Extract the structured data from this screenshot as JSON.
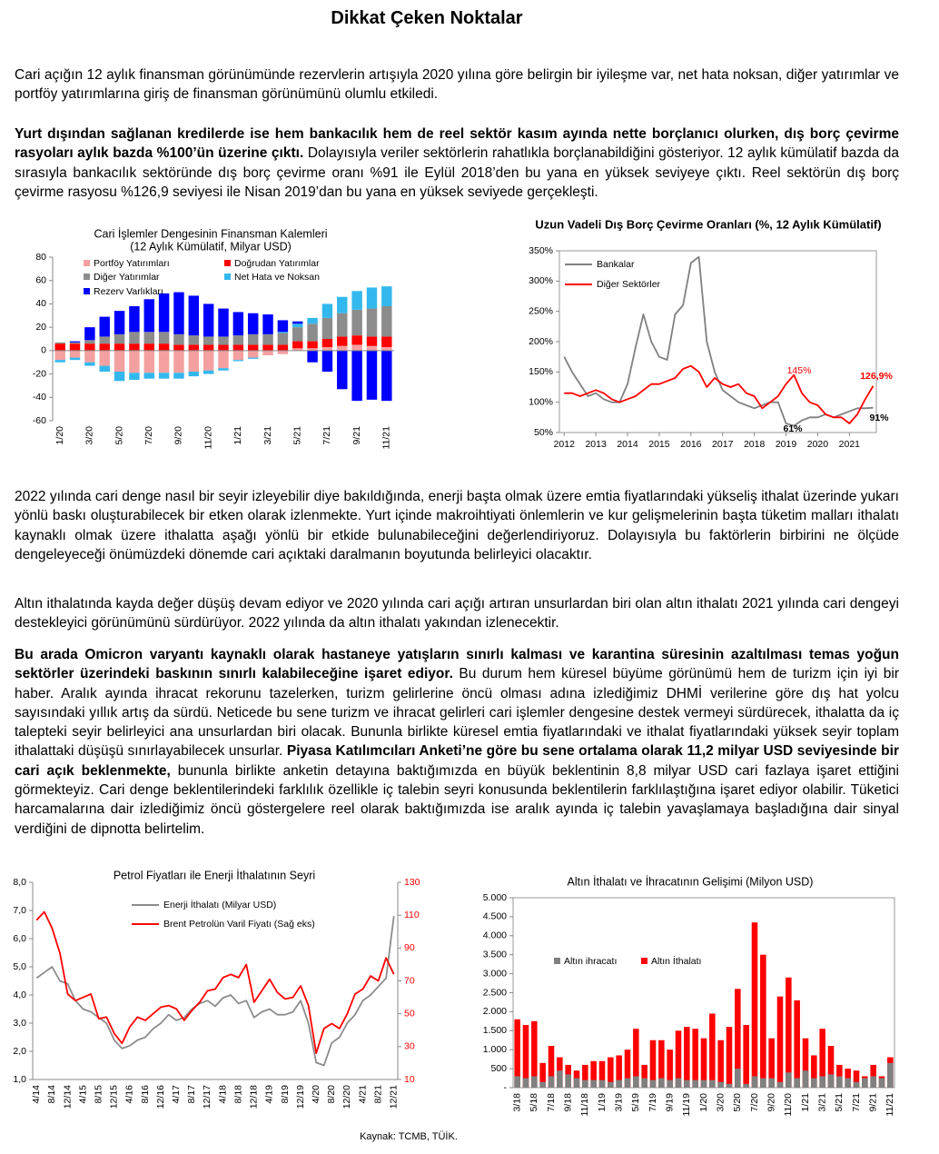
{
  "title": "Dikkat Çeken Noktalar",
  "paragraphs": [
    {
      "runs": [
        {
          "text": "Cari açığın 12 aylık finansman görünümünde rezervlerin artışıyla 2020 yılına göre belirgin bir iyileşme var, net hata noksan, diğer yatırımlar ve portföy yatırımlarına giriş de finansman görünümünü olumlu etkiledi.",
          "bold": false
        }
      ]
    },
    {
      "runs": [
        {
          "text": "Yurt dışından sağlanan kredilerde ise hem bankacılık hem de reel sektör kasım ayında nette borçlanıcı olurken, dış borç çevirme rasyoları aylık bazda %100’ün üzerine çıktı.",
          "bold": true
        },
        {
          "text": " Dolayısıyla veriler sektörlerin rahatlıkla borçlanabildiğini gösteriyor. 12 aylık kümülatif bazda da sırasıyla bankacılık sektöründe dış borç çevirme oranı %91 ile Eylül 2018’den bu yana en yüksek seviyeye çıktı. Reel sektörün dış borç çevirme rasyosu %126,9 seviyesi ile Nisan 2019’dan bu yana en yüksek seviyede gerçekleşti.",
          "bold": false
        }
      ]
    },
    {
      "runs": [
        {
          "text": "2022 yılında cari denge nasıl bir seyir izleyebilir diye bakıldığında, enerji başta olmak üzere emtia fiyatlarındaki yükseliş ithalat üzerinde yukarı yönlü baskı oluşturabilecek bir etken olarak izlenmekte. Yurt içinde makroihtiyati önlemlerin ve kur gelişmelerinin başta tüketim malları ithalatı kaynaklı olmak üzere ithalatta aşağı yönlü bir etkide bulunabileceğini değerlendiriyoruz. Dolayısıyla bu faktörlerin birbirini ne ölçüde dengeleyeceği önümüzdeki dönemde cari açıktaki daralmanın boyutunda belirleyici olacaktır.",
          "bold": false
        }
      ]
    },
    {
      "runs": [
        {
          "text": "Altın ithalatında kayda değer düşüş devam ediyor ve 2020 yılında cari açığı artıran unsurlardan biri olan altın ithalatı 2021 yılında cari dengeyi destekleyici görünümünü sürdürüyor. 2022 yılında da altın ithalatı yakından izlenecektir.",
          "bold": false
        }
      ]
    },
    {
      "runs": [
        {
          "text": "Bu arada Omicron varyantı kaynaklı olarak hastaneye yatışların sınırlı kalması ve karantina süresinin azaltılması temas yoğun sektörler üzerindeki baskının sınırlı kalabileceğine işaret ediyor.",
          "bold": true
        },
        {
          "text": " Bu durum hem küresel büyüme görünümü hem de turizm için iyi bir haber. Aralık ayında ihracat rekorunu tazelerken, turizm gelirlerine öncü olması adına izlediğimiz DHMİ verilerine göre dış hat yolcu sayısındaki yıllık artış da sürdü. Neticede bu sene turizm ve ihracat gelirleri cari işlemler dengesine destek vermeyi sürdürecek, ithalatta da iç talepteki seyir belirleyici ana unsurlardan biri olacak. Bununla birlikte küresel emtia fiyatlarındaki ve ithalat fiyatlarındaki yüksek seyir toplam ithalattaki düşüşü sınırlayabilecek unsurlar. ",
          "bold": false
        },
        {
          "text": "Piyasa Katılımcıları Anketi’ne göre bu sene ortalama olarak 11,2 milyar USD seviyesinde bir cari açık beklenmekte,",
          "bold": true
        },
        {
          "text": " bununla birlikte anketin detayına baktığımızda en büyük beklentinin 8,8 milyar USD cari fazlaya işaret ettiğini görmekteyiz. Cari denge beklentilerindeki farklılık özellikle iç talebin seyri konusunda beklentilerin farklılaştığına işaret ediyor olabilir. Tüketici harcamalarına dair izlediğimiz öncü göstergelere reel olarak baktığımızda ise aralık ayında iç talebin yavaşlamaya başladığına dair sinyal verdiğini de dipnotta belirtelim.",
          "bold": false
        }
      ]
    }
  ],
  "chart_data": [
    {
      "type": "bar",
      "stacked": true,
      "title": "Cari İşlemler Dengesinin Finansman  Kalemleri",
      "subtitle": "(12 Aylık Kümülatif, Milyar USD)",
      "categories": [
        "1/20",
        null,
        "3/20",
        null,
        "5/20",
        null,
        "7/20",
        null,
        "9/20",
        null,
        "11/20",
        null,
        "1/21",
        null,
        "3/21",
        null,
        "5/21",
        null,
        "7/21",
        null,
        "9/21",
        null,
        "11/21"
      ],
      "series": [
        {
          "name": "Portföy Yatırımları",
          "color": "#f4a0a0",
          "values": [
            -8,
            -6,
            -10,
            -13,
            -18,
            -19,
            -19,
            -19,
            -19,
            -18,
            -17,
            -15,
            -8,
            -6,
            -4,
            -3,
            2,
            2,
            3,
            4,
            5,
            4,
            3
          ]
        },
        {
          "name": "Doğrudan Yatırımlar",
          "color": "#ff0000",
          "values": [
            6,
            6,
            6,
            6,
            6,
            6,
            6,
            6,
            5,
            5,
            5,
            5,
            5,
            5,
            5,
            5,
            6,
            6,
            7,
            8,
            8,
            8,
            9
          ]
        },
        {
          "name": "Diğer Yatırımlar",
          "color": "#8c8c8c",
          "values": [
            1,
            1,
            3,
            6,
            8,
            10,
            10,
            10,
            9,
            8,
            7,
            7,
            8,
            9,
            9,
            10,
            12,
            15,
            18,
            20,
            22,
            24,
            26
          ]
        },
        {
          "name": "Net Hata ve Noksan",
          "color": "#33b8ee",
          "values": [
            -2,
            -2,
            -3,
            -5,
            -8,
            -6,
            -5,
            -5,
            -5,
            -4,
            -3,
            -2,
            -1,
            -1,
            0,
            1,
            3,
            5,
            12,
            14,
            16,
            18,
            17
          ]
        },
        {
          "name": "Rezerv Varlıkları",
          "color": "#0000ff",
          "values": [
            0,
            1,
            11,
            17,
            20,
            22,
            28,
            33,
            36,
            34,
            28,
            24,
            20,
            18,
            17,
            10,
            2,
            -10,
            -18,
            -33,
            -43,
            -42,
            -43
          ]
        }
      ],
      "ylim": [
        -60,
        80
      ],
      "yticks": [
        -60,
        -40,
        -20,
        0,
        20,
        40,
        60,
        80
      ],
      "grid": false
    },
    {
      "type": "line",
      "title": "Uzun Vadeli Dış Borç Çevirme Oranları (%, 12 Aylık Kümülatif)",
      "x": [
        2012,
        2012.25,
        2012.5,
        2012.75,
        2013,
        2013.25,
        2013.5,
        2013.75,
        2014,
        2014.25,
        2014.5,
        2014.75,
        2015,
        2015.25,
        2015.5,
        2015.75,
        2016,
        2016.25,
        2016.5,
        2016.75,
        2017,
        2017.25,
        2017.5,
        2017.75,
        2018,
        2018.25,
        2018.5,
        2018.75,
        2019,
        2019.25,
        2019.5,
        2019.75,
        2020,
        2020.25,
        2020.5,
        2020.75,
        2021,
        2021.25,
        2021.5,
        2021.75
      ],
      "series": [
        {
          "name": "Bankalar",
          "color": "#808080",
          "values": [
            175,
            150,
            130,
            110,
            115,
            105,
            100,
            100,
            130,
            190,
            245,
            200,
            175,
            170,
            245,
            260,
            330,
            340,
            200,
            150,
            120,
            110,
            100,
            95,
            90,
            95,
            100,
            100,
            65,
            61,
            70,
            75,
            75,
            80,
            75,
            80,
            85,
            90,
            90,
            91
          ]
        },
        {
          "name": "Diğer Sektörler",
          "color": "#ff0000",
          "values": [
            115,
            115,
            110,
            115,
            120,
            115,
            105,
            100,
            105,
            110,
            120,
            130,
            130,
            135,
            140,
            155,
            160,
            150,
            125,
            140,
            130,
            125,
            130,
            115,
            110,
            90,
            100,
            110,
            130,
            145,
            115,
            100,
            95,
            80,
            75,
            75,
            65,
            80,
            105,
            126.9
          ]
        }
      ],
      "xlim": [
        2011.85,
        2021.85
      ],
      "xticks": [
        2012,
        2013,
        2014,
        2015,
        2016,
        2017,
        2018,
        2019,
        2020,
        2021
      ],
      "ylim": [
        50,
        350
      ],
      "yticks": [
        {
          "value": 50,
          "label": "50%"
        },
        {
          "value": 100,
          "label": "100%"
        },
        {
          "value": 150,
          "label": "150%"
        },
        {
          "value": 200,
          "label": "200%"
        },
        {
          "value": 250,
          "label": "250%"
        },
        {
          "value": 300,
          "label": "300%"
        },
        {
          "value": 350,
          "label": "350%"
        }
      ],
      "grid": false,
      "annotations": [
        {
          "text": "145%",
          "color": "#ff0000",
          "bold": false
        },
        {
          "text": "126,9%",
          "color": "#ff0000",
          "bold": true
        },
        {
          "text": "61%",
          "color": "#000000",
          "bold": true
        },
        {
          "text": "91%",
          "color": "#000000",
          "bold": true
        }
      ]
    },
    {
      "type": "line",
      "title": "Petrol Fiyatları ile Enerji İthalatının Seyri",
      "categories": [
        "4/14",
        null,
        "8/14",
        null,
        "12/14",
        null,
        "4/15",
        null,
        "8/15",
        null,
        "12/15",
        null,
        "4/16",
        null,
        "8/16",
        null,
        "12/16",
        null,
        "4/17",
        null,
        "8/17",
        null,
        "12/17",
        null,
        "4/18",
        null,
        "8/18",
        null,
        "12/18",
        null,
        "4/19",
        null,
        "8/19",
        null,
        "12/19",
        null,
        "4/20",
        null,
        "8/20",
        null,
        "12/20",
        null,
        "4/21",
        null,
        "8/21",
        null,
        "12/21"
      ],
      "series": [
        {
          "name": "Enerji İthalatı (Milyar USD)",
          "color": "#8c8c8c",
          "axis": "y",
          "values": [
            4.6,
            4.8,
            5.0,
            4.5,
            4.4,
            3.8,
            3.5,
            3.4,
            3.2,
            3.0,
            2.4,
            2.1,
            2.2,
            2.4,
            2.5,
            2.8,
            3.0,
            3.3,
            3.1,
            3.2,
            3.5,
            3.7,
            3.8,
            3.6,
            3.9,
            4.0,
            3.7,
            3.8,
            3.2,
            3.4,
            3.5,
            3.3,
            3.3,
            3.4,
            3.8,
            3.0,
            1.6,
            1.5,
            2.3,
            2.5,
            3.0,
            3.3,
            3.8,
            4.0,
            4.3,
            4.6,
            6.8
          ]
        },
        {
          "name": "Brent Petrolün Varil Fiyatı (Sağ eks)",
          "color": "#ff0000",
          "axis": "y2",
          "values": [
            107,
            112,
            102,
            87,
            62,
            58,
            60,
            62,
            47,
            48,
            38,
            32,
            42,
            48,
            46,
            50,
            54,
            55,
            53,
            46,
            52,
            57,
            64,
            65,
            72,
            74,
            72,
            80,
            57,
            64,
            71,
            63,
            59,
            60,
            67,
            55,
            26,
            41,
            44,
            41,
            50,
            62,
            65,
            73,
            70,
            84,
            74
          ]
        }
      ],
      "ylim": [
        1,
        8
      ],
      "yticks": [
        {
          "value": 1,
          "label": "1,0"
        },
        {
          "value": 2,
          "label": "2,0"
        },
        {
          "value": 3,
          "label": "3,0"
        },
        {
          "value": 4,
          "label": "4,0"
        },
        {
          "value": 5,
          "label": "5,0"
        },
        {
          "value": 6,
          "label": "6,0"
        },
        {
          "value": 7,
          "label": "7,0"
        },
        {
          "value": 8,
          "label": "8,0"
        }
      ],
      "y2lim": [
        10,
        130
      ],
      "y2ticks": [
        10,
        30,
        50,
        70,
        90,
        110,
        130
      ],
      "grid": false
    },
    {
      "type": "bar",
      "stacked": false,
      "title": "Altın İthalatı ve İhracatının Gelişimi (Milyon USD)",
      "categories": [
        "3/18",
        null,
        "5/18",
        null,
        "7/18",
        null,
        "9/18",
        null,
        "11/18",
        null,
        "1/19",
        null,
        "3/19",
        null,
        "5/19",
        null,
        "7/19",
        null,
        "9/19",
        null,
        "11/19",
        null,
        "1/20",
        null,
        "3/20",
        null,
        "5/20",
        null,
        "7/20",
        null,
        "9/20",
        null,
        "11/20",
        null,
        "1/21",
        null,
        "3/21",
        null,
        "5/21",
        null,
        "7/21",
        null,
        "9/21",
        null,
        "11/21"
      ],
      "series": [
        {
          "name": "Altın ihracatı",
          "color": "#808080",
          "values": [
            300,
            250,
            300,
            150,
            300,
            450,
            350,
            250,
            200,
            200,
            200,
            150,
            200,
            250,
            300,
            250,
            200,
            250,
            200,
            250,
            200,
            200,
            200,
            200,
            150,
            100,
            500,
            100,
            300,
            250,
            250,
            150,
            400,
            250,
            450,
            250,
            300,
            350,
            300,
            250,
            150,
            250,
            300,
            250,
            650
          ]
        },
        {
          "name": "Altın İthalatı",
          "color": "#ff0000",
          "values": [
            1800,
            1650,
            1750,
            650,
            1100,
            800,
            600,
            450,
            600,
            700,
            700,
            800,
            850,
            1000,
            1550,
            600,
            1250,
            1250,
            1000,
            1500,
            1600,
            1550,
            1300,
            1950,
            1250,
            1600,
            2600,
            1650,
            4350,
            3500,
            1300,
            2400,
            2900,
            2300,
            1300,
            850,
            1550,
            1100,
            600,
            500,
            450,
            300,
            600,
            300,
            800
          ]
        }
      ],
      "ylim": [
        0,
        5000
      ],
      "yticks": [
        {
          "value": 0,
          "label": "-"
        },
        500,
        {
          "value": 1000,
          "label": "1.000"
        },
        {
          "value": 1500,
          "label": "1.500"
        },
        {
          "value": 2000,
          "label": "2.000"
        },
        {
          "value": 2500,
          "label": "2.500"
        },
        {
          "value": 3000,
          "label": "3.000"
        },
        {
          "value": 3500,
          "label": "3.500"
        },
        {
          "value": 4000,
          "label": "4.000"
        },
        {
          "value": 4500,
          "label": "4.500"
        },
        {
          "value": 5000,
          "label": "5.000"
        }
      ],
      "grid": false
    }
  ],
  "source": "Kaynak: TCMB, TÜİK."
}
